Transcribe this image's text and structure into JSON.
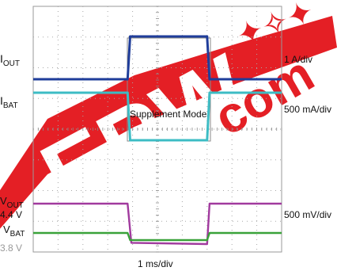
{
  "chart_data": {
    "type": "line",
    "title": "",
    "xlabel": "1 ms/div",
    "x_unit": "ms",
    "x_divisions": 10,
    "y_divisions": 8,
    "grid": true,
    "xlim": [
      0,
      10
    ],
    "annotation": "Supplement Mode",
    "series": [
      {
        "name": "I_OUT",
        "name_main": "I",
        "name_sub": "OUT",
        "scale_label": "1 A/div",
        "color": "#1f3d9a",
        "values": [
          {
            "x": 0,
            "y": 0.2
          },
          {
            "x": 3.8,
            "y": 0.2
          },
          {
            "x": 3.9,
            "y": 1.5
          },
          {
            "x": 7.0,
            "y": 1.5
          },
          {
            "x": 7.1,
            "y": 0.2
          },
          {
            "x": 10,
            "y": 0.2
          }
        ]
      },
      {
        "name": "I_BAT",
        "name_main": "I",
        "name_sub": "BAT",
        "scale_label": "500 mA/div",
        "color": "#3dbcc4",
        "values": [
          {
            "x": 0,
            "y": -0.1
          },
          {
            "x": 3.8,
            "y": -0.1
          },
          {
            "x": 3.9,
            "y": -1.7
          },
          {
            "x": 7.0,
            "y": -1.7
          },
          {
            "x": 7.1,
            "y": -0.1
          },
          {
            "x": 10,
            "y": -0.1
          }
        ]
      },
      {
        "name": "V_OUT",
        "name_main": "V",
        "name_sub": "OUT",
        "level_label": "4.4 V",
        "scale_label": "500 mV/div",
        "color": "#a13a9e",
        "values": [
          {
            "x": 0,
            "y": 4.4
          },
          {
            "x": 3.8,
            "y": 4.4
          },
          {
            "x": 3.95,
            "y": 3.8
          },
          {
            "x": 7.0,
            "y": 3.78
          },
          {
            "x": 7.1,
            "y": 4.4
          },
          {
            "x": 10,
            "y": 4.4
          }
        ]
      },
      {
        "name": "V_BAT",
        "name_main": "V",
        "name_sub": "BAT",
        "level_label": "3.8 V",
        "color": "#3aa23a",
        "values": [
          {
            "x": 0,
            "y": 3.8
          },
          {
            "x": 3.8,
            "y": 3.8
          },
          {
            "x": 3.9,
            "y": 3.73
          },
          {
            "x": 7.0,
            "y": 3.73
          },
          {
            "x": 7.1,
            "y": 3.8
          },
          {
            "x": 10,
            "y": 3.8
          }
        ]
      }
    ]
  },
  "colors": {
    "watermark": "#e3141a",
    "grid_dot": "#a8a8a8",
    "frame": "#9a9a9a"
  }
}
